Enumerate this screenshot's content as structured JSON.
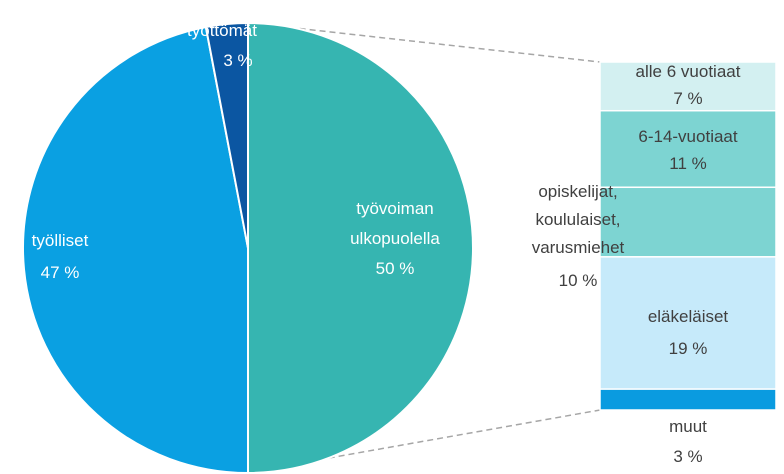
{
  "chart_data": [
    {
      "type": "pie",
      "categories": [
        "työvoiman\nulkopuolella",
        "työlliset",
        "työttömät"
      ],
      "values": [
        50,
        47,
        3
      ],
      "value_labels": [
        "50 %",
        "47 %",
        "3 %"
      ],
      "colors": [
        "#36b5b1",
        "#0aa0e2",
        "#0b56a2"
      ]
    },
    {
      "type": "stacked_bar",
      "categories": [
        "alle 6 vuotiaat",
        "6-14-vuotiaat",
        "opiskelijat,\nkoululaiset,\nvarusmiehet",
        "eläkeläiset",
        "muut"
      ],
      "values": [
        7,
        11,
        10,
        19,
        3
      ],
      "value_labels": [
        "7 %",
        "11 %",
        "10 %",
        "19 %",
        "3 %"
      ],
      "colors": [
        "#d3f0f1",
        "#7dd4d2",
        "#7dd4d2",
        "#c6eafa",
        "#0a9be0"
      ]
    }
  ]
}
